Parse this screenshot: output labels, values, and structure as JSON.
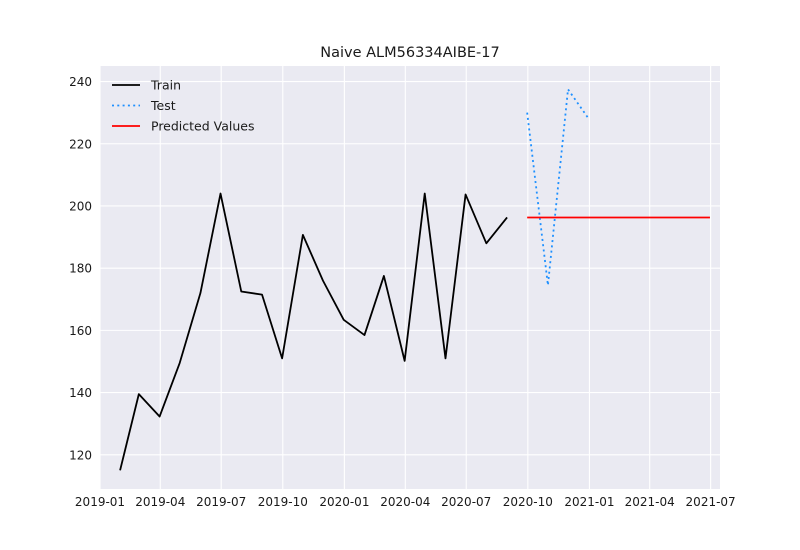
{
  "chart_data": {
    "type": "line",
    "title": "Naive ALM56334AIBE-17",
    "xlabel": "",
    "ylabel": "",
    "x_axis": "date",
    "xlim": [
      "2019-01-01",
      "2021-07-15"
    ],
    "ylim": [
      109,
      245
    ],
    "x_ticks": [
      "2019-01",
      "2019-04",
      "2019-07",
      "2019-10",
      "2020-01",
      "2020-04",
      "2020-07",
      "2020-10",
      "2021-01",
      "2021-04",
      "2021-07"
    ],
    "y_ticks": [
      120,
      140,
      160,
      180,
      200,
      220,
      240
    ],
    "grid": true,
    "legend_position": "top-left",
    "background_color": "#eaeaf2",
    "grid_color": "#ffffff",
    "series": [
      {
        "name": "Train",
        "color": "#000000",
        "style": "solid",
        "points": [
          [
            "2019-01-31",
            115
          ],
          [
            "2019-02-28",
            139.5
          ],
          [
            "2019-03-31",
            132.3
          ],
          [
            "2019-04-30",
            149.5
          ],
          [
            "2019-05-31",
            172
          ],
          [
            "2019-06-30",
            204
          ],
          [
            "2019-07-31",
            172.5
          ],
          [
            "2019-08-31",
            171.5
          ],
          [
            "2019-09-30",
            151
          ],
          [
            "2019-10-31",
            190.7
          ],
          [
            "2019-11-30",
            176
          ],
          [
            "2019-12-31",
            163.4
          ],
          [
            "2020-01-31",
            158.5
          ],
          [
            "2020-02-29",
            177.5
          ],
          [
            "2020-03-31",
            150.2
          ],
          [
            "2020-04-30",
            204
          ],
          [
            "2020-05-31",
            151
          ],
          [
            "2020-06-30",
            203.7
          ],
          [
            "2020-07-31",
            188
          ],
          [
            "2020-08-31",
            196.3
          ]
        ]
      },
      {
        "name": "Test",
        "color": "#1e90ff",
        "style": "dotted",
        "points": [
          [
            "2020-09-30",
            230
          ],
          [
            "2020-10-31",
            174.5
          ],
          [
            "2020-11-30",
            237.5
          ],
          [
            "2020-12-31",
            228
          ]
        ]
      },
      {
        "name": "Predicted Values",
        "color": "#ff0000",
        "style": "solid",
        "points": [
          [
            "2020-09-30",
            196.3
          ],
          [
            "2021-06-30",
            196.3
          ]
        ]
      }
    ]
  }
}
